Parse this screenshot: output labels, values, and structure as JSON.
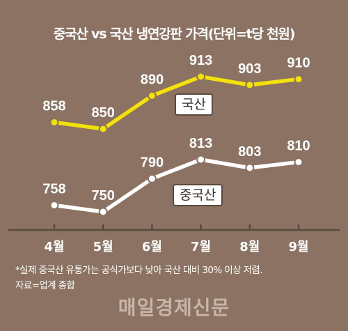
{
  "chart_data": {
    "type": "line",
    "title": "중국산 vs 국산 냉연강판 가격(단위=t당 천원)",
    "categories": [
      "4월",
      "5월",
      "6월",
      "7월",
      "8월",
      "9월"
    ],
    "series": [
      {
        "name": "국산",
        "color": "#f5e10a",
        "values": [
          858,
          850,
          890,
          913,
          903,
          910
        ]
      },
      {
        "name": "중국산",
        "color": "#ffffff",
        "values": [
          758,
          750,
          790,
          813,
          803,
          810
        ]
      }
    ],
    "grid": false,
    "legend": "inline"
  },
  "notes": [
    "*실제 중국산 유통가는 공식가보다 낮아 국산 대비 30% 이상 저렴.",
    "자료=업계 종합"
  ],
  "source": "매일경제신문",
  "colors": {
    "background": "#8b7262",
    "axis": "#5a4a3e"
  }
}
